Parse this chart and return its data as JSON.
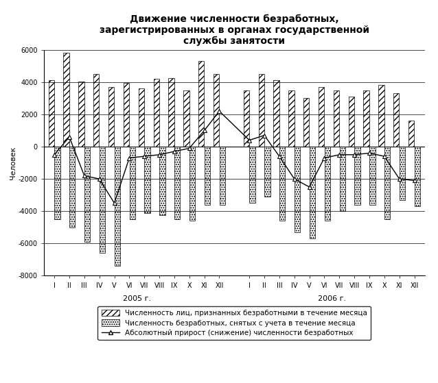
{
  "title": "Движение численности безработных,\nзарегистрированных в органах государственной\nслужбы занятости",
  "ylabel": "Человек",
  "xlabels_2005": [
    "I",
    "II",
    "III",
    "IV",
    "V",
    "VI",
    "VII",
    "VIII",
    "IX",
    "X",
    "XI",
    "XII"
  ],
  "xlabels_2006": [
    "I",
    "II",
    "III",
    "IV",
    "V",
    "VI",
    "VII",
    "VIII",
    "IX",
    "X",
    "XI",
    "XII"
  ],
  "year_labels": [
    "2005 г.",
    "2006 г."
  ],
  "positive_bars_2005": [
    4100,
    5800,
    4050,
    4500,
    3700,
    3950,
    3600,
    4200,
    4250,
    3500,
    5300,
    4500
  ],
  "negative_bars_2005": [
    -4500,
    -5000,
    -5900,
    -6600,
    -7400,
    -4500,
    -4100,
    -4250,
    -4500,
    -4600,
    -3600,
    -3600
  ],
  "positive_bars_2006": [
    3500,
    4500,
    4100,
    3500,
    3000,
    3700,
    3500,
    3100,
    3500,
    3800,
    3300,
    1600
  ],
  "negative_bars_2006": [
    -3500,
    -3100,
    -4600,
    -5300,
    -5700,
    -4600,
    -4000,
    -3600,
    -3600,
    -4500,
    -3300,
    -3700
  ],
  "line_2005": [
    -500,
    600,
    -1800,
    -2000,
    -3500,
    -700,
    -600,
    -500,
    -300,
    -100,
    1000,
    2200
  ],
  "line_2006": [
    400,
    700,
    -600,
    -2000,
    -2500,
    -700,
    -500,
    -500,
    -400,
    -600,
    -2000,
    -2100
  ],
  "ylim": [
    -8000,
    6000
  ],
  "yticks": [
    -8000,
    -6000,
    -4000,
    -2000,
    0,
    2000,
    4000,
    6000
  ],
  "hatch_positive": "////",
  "hatch_negative": ".....",
  "bar_color": "white",
  "bar_edgecolor": "black",
  "line_color": "black",
  "line_marker": "^",
  "legend_labels": [
    "Численность лиц, признанных безработными в течение месяца",
    "Численность безработных, снятых с учета в течение месяца",
    "Абсолютный прирост (снижение) численности безработных"
  ],
  "background_color": "#ffffff",
  "title_fontsize": 10,
  "axis_fontsize": 8,
  "tick_fontsize": 7,
  "legend_fontsize": 7.5
}
